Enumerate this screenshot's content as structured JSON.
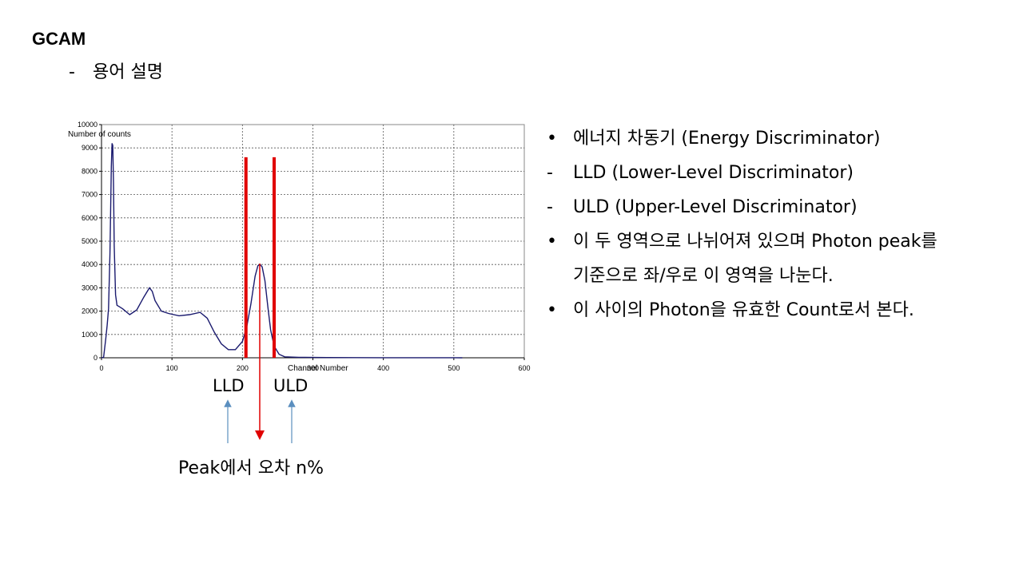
{
  "slide": {
    "title": "GCAM",
    "subtitle_marker": "-",
    "subtitle": "용어 설명"
  },
  "bullets": [
    {
      "marker": "•",
      "text": "에너지 차동기 (Energy Discriminator)"
    },
    {
      "marker": "-",
      "text": "LLD (Lower-Level Discriminator)"
    },
    {
      "marker": "-",
      "text": "ULD (Upper-Level Discriminator)"
    },
    {
      "marker": "•",
      "text": " 이 두 영역으로 나뉘어져 있으며 Photon peak를"
    },
    {
      "marker": "",
      "text": "기준으로 좌/우로 이 영역을 나눈다."
    },
    {
      "marker": "•",
      "text": "이 사이의 Photon을 유효한 Count로서 본다."
    }
  ],
  "annotations": {
    "lld": "LLD",
    "uld": "ULD",
    "peak": "Peak에서 오차 n%"
  },
  "colors": {
    "curve": "#1a1a6e",
    "discriminator": "#e00000",
    "blue_arrow": "#5b8fbf",
    "red_arrow": "#e00000",
    "grid": "#555555"
  },
  "chart_data": {
    "type": "line",
    "ylabel": "Number of counts",
    "xlabel": "Channel Number",
    "xlim": [
      0,
      600
    ],
    "ylim": [
      0,
      10000
    ],
    "x_ticks": [
      0,
      100,
      200,
      300,
      400,
      500,
      600
    ],
    "y_ticks": [
      0,
      1000,
      2000,
      3000,
      4000,
      5000,
      6000,
      7000,
      8000,
      9000,
      10000
    ],
    "grid": true,
    "series": [
      {
        "x": [
          0,
          3,
          6,
          8,
          10,
          12,
          14,
          15,
          16,
          17,
          18,
          20,
          22,
          25,
          30,
          40,
          50,
          60,
          68,
          72,
          76,
          85,
          95,
          110,
          125,
          140,
          150,
          160,
          170,
          180,
          190,
          200,
          206,
          212,
          218,
          222,
          225,
          228,
          232,
          236,
          240,
          245,
          252,
          260,
          280,
          320,
          400,
          500,
          510,
          512
        ],
        "values": [
          0,
          20,
          800,
          1400,
          2100,
          4500,
          8200,
          9200,
          9100,
          7500,
          4800,
          2700,
          2250,
          2200,
          2100,
          1850,
          2050,
          2600,
          3000,
          2850,
          2450,
          2000,
          1900,
          1800,
          1850,
          1950,
          1700,
          1100,
          600,
          350,
          350,
          700,
          1300,
          2300,
          3500,
          3950,
          4000,
          3900,
          3300,
          2200,
          1200,
          500,
          150,
          40,
          20,
          10,
          5,
          3,
          0,
          0
        ]
      }
    ],
    "markers": [
      {
        "name": "LLD",
        "x": 205,
        "y": 8600
      },
      {
        "name": "ULD",
        "x": 245,
        "y": 8600
      }
    ]
  }
}
